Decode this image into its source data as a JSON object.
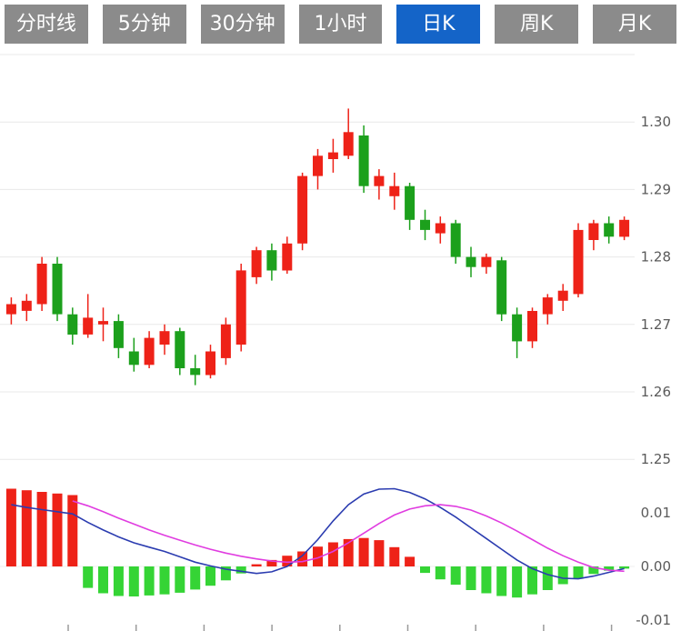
{
  "tabs": [
    {
      "label": "分时线",
      "active": false
    },
    {
      "label": "5分钟",
      "active": false
    },
    {
      "label": "30分钟",
      "active": false
    },
    {
      "label": "1小时",
      "active": false
    },
    {
      "label": "日K",
      "active": true
    },
    {
      "label": "周K",
      "active": false
    },
    {
      "label": "月K",
      "active": false
    }
  ],
  "colors": {
    "tab_bg": "#8b8b8b",
    "tab_active_bg": "#1464c8",
    "tab_text": "#ffffff",
    "grid": "#e8e8e8",
    "axis_text": "#5a5a5a"
  },
  "chart_data": [
    {
      "type": "candlestick",
      "title": "日K",
      "y_axis_labels": [
        "1.30",
        "1.29",
        "1.28",
        "1.27",
        "1.26",
        "1.25"
      ],
      "y_range": [
        1.25,
        1.31
      ],
      "grid": true,
      "legend": "none",
      "up_color": "#ee2218",
      "down_color": "#1ca01c",
      "candles_ohlc": [
        [
          1.2715,
          1.274,
          1.27,
          1.273
        ],
        [
          1.272,
          1.2745,
          1.2705,
          1.2735
        ],
        [
          1.273,
          1.28,
          1.272,
          1.279
        ],
        [
          1.279,
          1.28,
          1.2705,
          1.2715
        ],
        [
          1.2715,
          1.2725,
          1.267,
          1.2685
        ],
        [
          1.2685,
          1.2745,
          1.268,
          1.271
        ],
        [
          1.27,
          1.2725,
          1.2675,
          1.2705
        ],
        [
          1.2705,
          1.2715,
          1.265,
          1.2665
        ],
        [
          1.266,
          1.268,
          1.263,
          1.264
        ],
        [
          1.264,
          1.269,
          1.2635,
          1.268
        ],
        [
          1.267,
          1.27,
          1.2655,
          1.269
        ],
        [
          1.269,
          1.2695,
          1.2625,
          1.2635
        ],
        [
          1.2635,
          1.2655,
          1.261,
          1.2625
        ],
        [
          1.2625,
          1.267,
          1.262,
          1.266
        ],
        [
          1.265,
          1.271,
          1.264,
          1.27
        ],
        [
          1.267,
          1.279,
          1.266,
          1.278
        ],
        [
          1.277,
          1.2815,
          1.276,
          1.281
        ],
        [
          1.281,
          1.282,
          1.2765,
          1.278
        ],
        [
          1.278,
          1.283,
          1.2775,
          1.282
        ],
        [
          1.282,
          1.2925,
          1.281,
          1.292
        ],
        [
          1.292,
          1.296,
          1.29,
          1.295
        ],
        [
          1.2945,
          1.2975,
          1.2925,
          1.2955
        ],
        [
          1.295,
          1.302,
          1.2945,
          1.2985
        ],
        [
          1.298,
          1.2995,
          1.2895,
          1.2905
        ],
        [
          1.2905,
          1.293,
          1.2885,
          1.292
        ],
        [
          1.289,
          1.2925,
          1.287,
          1.2905
        ],
        [
          1.2905,
          1.291,
          1.284,
          1.2855
        ],
        [
          1.2855,
          1.287,
          1.2825,
          1.284
        ],
        [
          1.2835,
          1.286,
          1.282,
          1.285
        ],
        [
          1.285,
          1.2855,
          1.279,
          1.28
        ],
        [
          1.28,
          1.2815,
          1.277,
          1.2785
        ],
        [
          1.2785,
          1.2805,
          1.2775,
          1.28
        ],
        [
          1.2795,
          1.28,
          1.2705,
          1.2715
        ],
        [
          1.2715,
          1.2725,
          1.265,
          1.2675
        ],
        [
          1.2675,
          1.2725,
          1.2665,
          1.272
        ],
        [
          1.2715,
          1.2745,
          1.27,
          1.274
        ],
        [
          1.2735,
          1.276,
          1.272,
          1.275
        ],
        [
          1.2745,
          1.285,
          1.274,
          1.284
        ],
        [
          1.2825,
          1.2855,
          1.281,
          1.285
        ],
        [
          1.285,
          1.286,
          1.282,
          1.283
        ],
        [
          1.283,
          1.286,
          1.2825,
          1.2855
        ]
      ]
    },
    {
      "type": "macd",
      "y_axis_labels": [
        "0.01",
        "0.00",
        "-0.01"
      ],
      "y_range": [
        -0.012,
        0.0149
      ],
      "grid": true,
      "legend": "none",
      "histogram_up_color": "#ee2218",
      "histogram_down_color": "#35d435",
      "dif_color": "#2b3cb0",
      "dea_color": "#e03ce0",
      "histogram": [
        0.0145,
        0.0142,
        0.0139,
        0.0136,
        0.0133,
        -0.004,
        -0.005,
        -0.0055,
        -0.0056,
        -0.0054,
        -0.0052,
        -0.0049,
        -0.0043,
        -0.0036,
        -0.0026,
        -0.0013,
        0.0004,
        0.0012,
        0.002,
        0.0028,
        0.0037,
        0.0045,
        0.0051,
        0.0053,
        0.0049,
        0.0036,
        0.0018,
        -0.0012,
        -0.0024,
        -0.0034,
        -0.0044,
        -0.005,
        -0.0055,
        -0.0058,
        -0.0052,
        -0.0044,
        -0.0033,
        -0.0023,
        -0.0014,
        -0.0008,
        -0.0004
      ],
      "dif_line": [
        0.0115,
        0.011,
        0.0106,
        0.0102,
        0.0098,
        0.0082,
        0.0068,
        0.0055,
        0.0044,
        0.0036,
        0.0028,
        0.0018,
        0.0008,
        0.0001,
        -0.0005,
        -0.0009,
        -0.0013,
        -0.001,
        0.0,
        0.002,
        0.005,
        0.0085,
        0.0115,
        0.0135,
        0.0144,
        0.0145,
        0.0138,
        0.0126,
        0.011,
        0.0092,
        0.0072,
        0.0052,
        0.0032,
        0.0012,
        -0.0004,
        -0.0015,
        -0.0022,
        -0.0023,
        -0.0018,
        -0.0011,
        -0.0004
      ],
      "dea_line": [
        null,
        null,
        null,
        null,
        0.0122,
        0.0113,
        0.0102,
        0.009,
        0.0079,
        0.0068,
        0.0058,
        0.0049,
        0.004,
        0.0032,
        0.0025,
        0.0019,
        0.0014,
        0.001,
        0.0008,
        0.0009,
        0.0016,
        0.0028,
        0.0044,
        0.0062,
        0.008,
        0.0096,
        0.0107,
        0.0113,
        0.0115,
        0.0112,
        0.0105,
        0.0094,
        0.0081,
        0.0066,
        0.005,
        0.0034,
        0.002,
        0.0008,
        -0.0002,
        -0.0007,
        -0.0009
      ]
    }
  ]
}
